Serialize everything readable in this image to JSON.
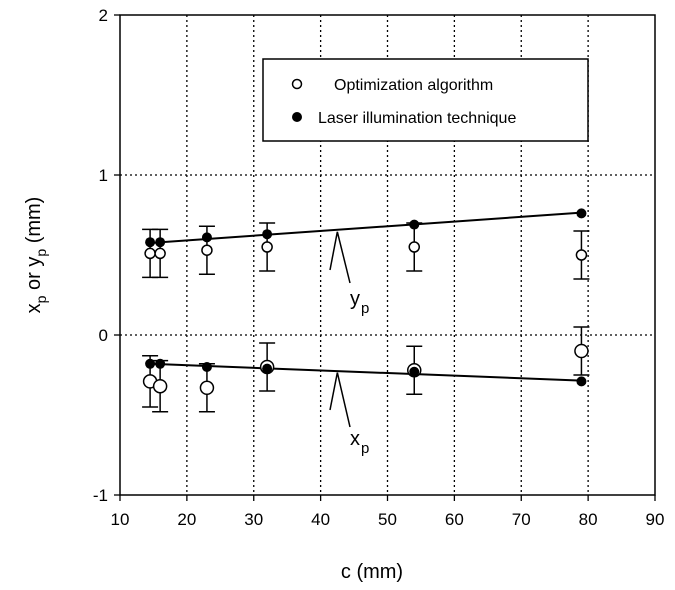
{
  "chart_data": {
    "type": "scatter",
    "title": "",
    "xlabel": "c (mm)",
    "ylabel": "x_p or y_p (mm)",
    "xlim": [
      10,
      90
    ],
    "ylim": [
      -1,
      2
    ],
    "xticks": [
      10,
      20,
      30,
      40,
      50,
      60,
      70,
      80,
      90
    ],
    "yticks": [
      -1,
      0,
      1,
      2
    ],
    "grid": "dotted",
    "legend_position": "top-right",
    "series": [
      {
        "name": "Optimization algorithm",
        "marker": "open-circle",
        "groups": [
          {
            "label": "y_p",
            "x": [
              14.5,
              16,
              23,
              32,
              54,
              79
            ],
            "y": [
              0.51,
              0.51,
              0.53,
              0.55,
              0.55,
              0.5
            ],
            "error": [
              0.15,
              0.15,
              0.15,
              0.15,
              0.15,
              0.15
            ]
          },
          {
            "label": "x_p",
            "x": [
              14.5,
              16,
              23,
              32,
              54,
              79
            ],
            "y": [
              -0.29,
              -0.32,
              -0.33,
              -0.2,
              -0.22,
              -0.1
            ],
            "error": [
              0.16,
              0.16,
              0.15,
              0.15,
              0.15,
              0.15
            ]
          }
        ]
      },
      {
        "name": "Laser illumination technique",
        "marker": "filled-circle",
        "groups": [
          {
            "label": "y_p",
            "x": [
              14.5,
              16,
              23,
              32,
              54,
              79
            ],
            "y": [
              0.58,
              0.58,
              0.61,
              0.63,
              0.69,
              0.76
            ]
          },
          {
            "label": "x_p",
            "x": [
              14.5,
              16,
              23,
              32,
              54,
              79
            ],
            "y": [
              -0.18,
              -0.18,
              -0.2,
              -0.21,
              -0.23,
              -0.29
            ]
          }
        ]
      }
    ],
    "fit_lines": [
      {
        "label": "y_p",
        "x": [
          14.5,
          79
        ],
        "y": [
          0.575,
          0.765
        ]
      },
      {
        "label": "x_p",
        "x": [
          14.5,
          79
        ],
        "y": [
          -0.18,
          -0.285
        ]
      }
    ],
    "annotations": [
      {
        "text_main": "y",
        "text_sub": "p",
        "arrow_to": [
          42.5,
          0.645
        ]
      },
      {
        "text_main": "x",
        "text_sub": "p",
        "arrow_to": [
          42.5,
          -0.235
        ]
      }
    ]
  }
}
